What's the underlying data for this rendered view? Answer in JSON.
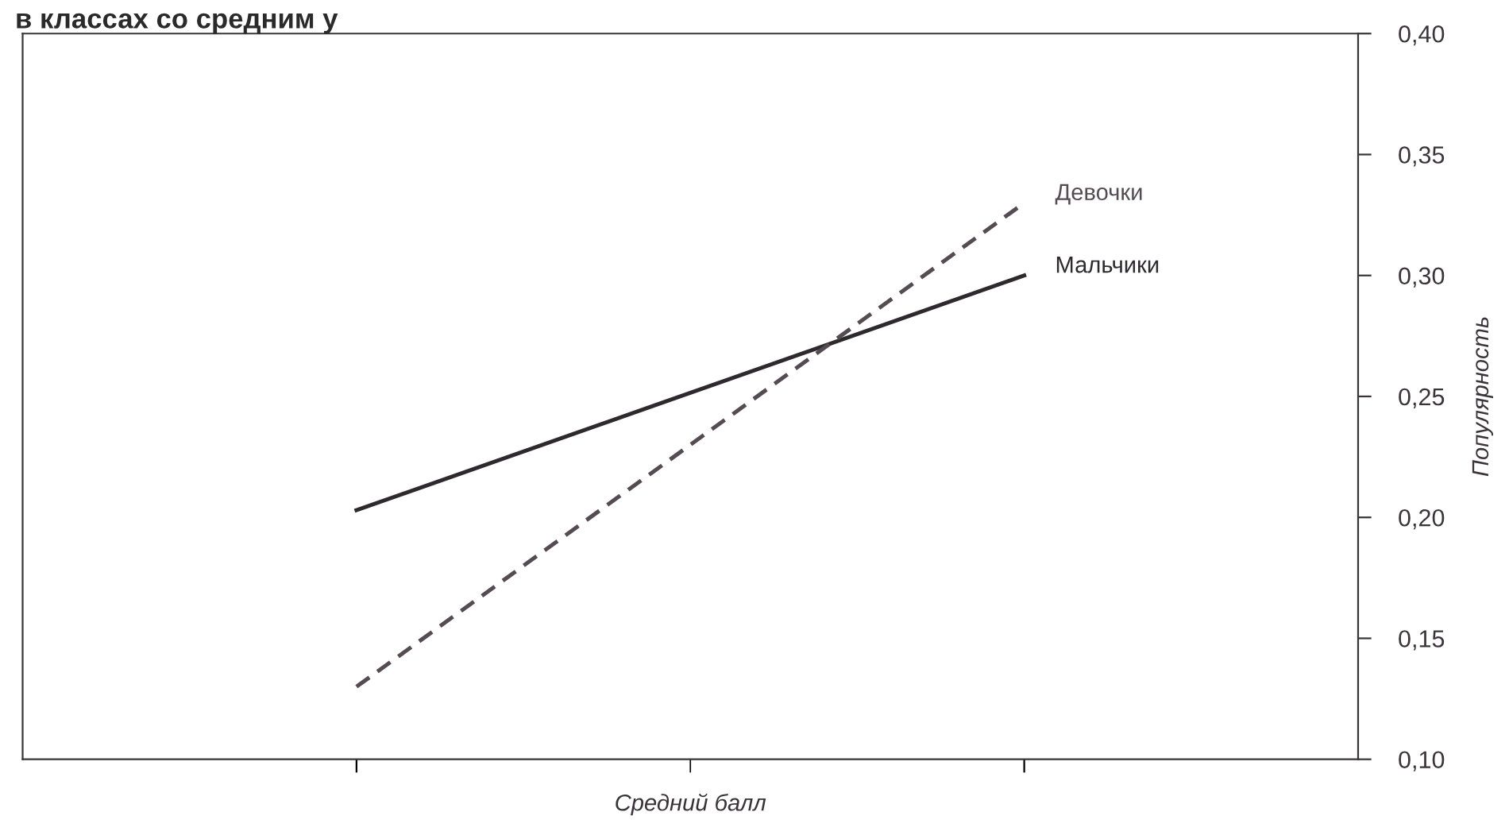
{
  "chart_data": {
    "type": "line",
    "title": "в классах со средним у",
    "xlabel": "Средний балл",
    "ylabel": "Популярность",
    "categories": [
      null,
      null
    ],
    "series": [
      {
        "name": "Мальчики",
        "color": "#2e292d",
        "line_style": "solid",
        "values": [
          0.203,
          0.3
        ]
      },
      {
        "name": "Девочки",
        "color": "#544c52",
        "line_style": "dashed",
        "values": [
          0.13,
          0.33
        ]
      }
    ],
    "ylim": [
      0.1,
      0.4
    ],
    "yticks": [
      {
        "value": 0.1,
        "label": "0,10"
      },
      {
        "value": 0.15,
        "label": "0,15"
      },
      {
        "value": 0.2,
        "label": "0,20"
      },
      {
        "value": 0.25,
        "label": "0,25"
      },
      {
        "value": 0.3,
        "label": "0,30"
      },
      {
        "value": 0.35,
        "label": "0,35"
      },
      {
        "value": 0.4,
        "label": "0,40"
      }
    ],
    "grid": false,
    "legend": false,
    "marker": "none"
  }
}
